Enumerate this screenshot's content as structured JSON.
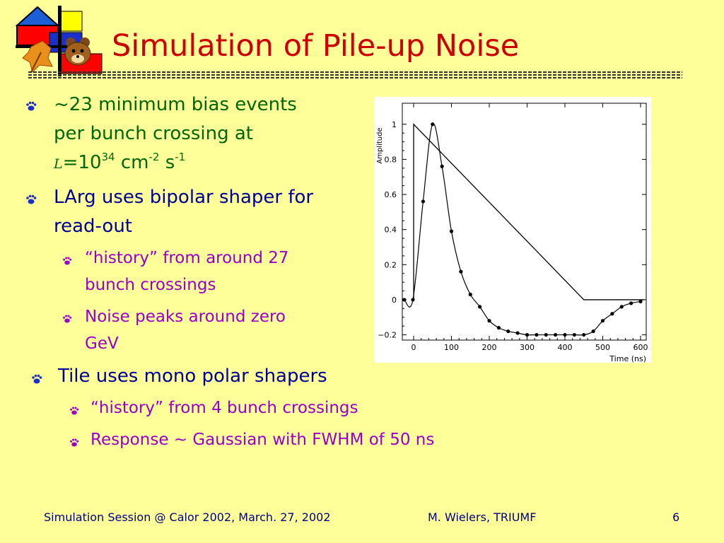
{
  "slide": {
    "title": "Simulation of Pile-up Noise",
    "bullets": {
      "b1_line1": "~23 minimum bias events",
      "b1_line2": "per bunch crossing at",
      "b1_lumi_symbol": "L",
      "b1_eq": "=10",
      "b1_exp1": "34",
      "b1_cm": " cm",
      "b1_exp2": "-2",
      "b1_s": " s",
      "b1_exp3": "-1",
      "b2_line1": "LArg uses bipolar shaper for",
      "b2_line2": "read-out",
      "b2a_line1": "“history” from around 27",
      "b2a_line2": "bunch crossings",
      "b2b_line1": "Noise peaks around zero",
      "b2b_line2": "GeV",
      "b3": "Tile uses mono polar shapers",
      "b3a": "“history” from 4 bunch crossings",
      "b3b": "Response ~ Gaussian with FWHM of 50 ns"
    },
    "footer": {
      "left": "Simulation Session @ Calor 2002,  March. 27, 2002",
      "center": "M. Wielers, TRIUMF",
      "page": "6"
    },
    "colors": {
      "title": "#cc0000",
      "level1": "#000099",
      "level1_first": "#006600",
      "level2": "#9900cc",
      "background": "#ffff99"
    }
  },
  "chart_data": {
    "type": "line",
    "title": "",
    "xlabel": "Time (ns)",
    "ylabel": "Amplitude",
    "xlim": [
      -30,
      615
    ],
    "ylim": [
      -0.23,
      1.12
    ],
    "xticks": [
      0,
      100,
      200,
      300,
      400,
      500,
      600
    ],
    "xtick_labels": [
      "0",
      "100",
      "200",
      "300",
      "400",
      "500",
      "600"
    ],
    "yticks": [
      -0.2,
      0,
      0.2,
      0.4,
      0.6,
      0.8,
      1
    ],
    "ytick_labels": [
      "−0.2",
      "0",
      "0.2",
      "0.4",
      "0.6",
      "0.8",
      "1"
    ],
    "grid": false,
    "series": [
      {
        "style": "line",
        "x": [
          0,
          0,
          450,
          610
        ],
        "y": [
          0,
          1,
          0,
          0
        ]
      },
      {
        "style": "line-markers",
        "x": [
          -25,
          -2,
          25,
          50,
          75,
          100,
          125,
          150,
          175,
          200,
          225,
          250,
          275,
          300,
          325,
          350,
          375,
          400,
          425,
          450,
          475,
          500,
          525,
          550,
          575,
          600
        ],
        "y": [
          0,
          0,
          0.56,
          1.0,
          0.76,
          0.39,
          0.16,
          0.03,
          -0.04,
          -0.12,
          -0.16,
          -0.18,
          -0.19,
          -0.2,
          -0.2,
          -0.2,
          -0.2,
          -0.2,
          -0.2,
          -0.2,
          -0.18,
          -0.12,
          -0.08,
          -0.04,
          -0.02,
          -0.01
        ]
      }
    ]
  }
}
